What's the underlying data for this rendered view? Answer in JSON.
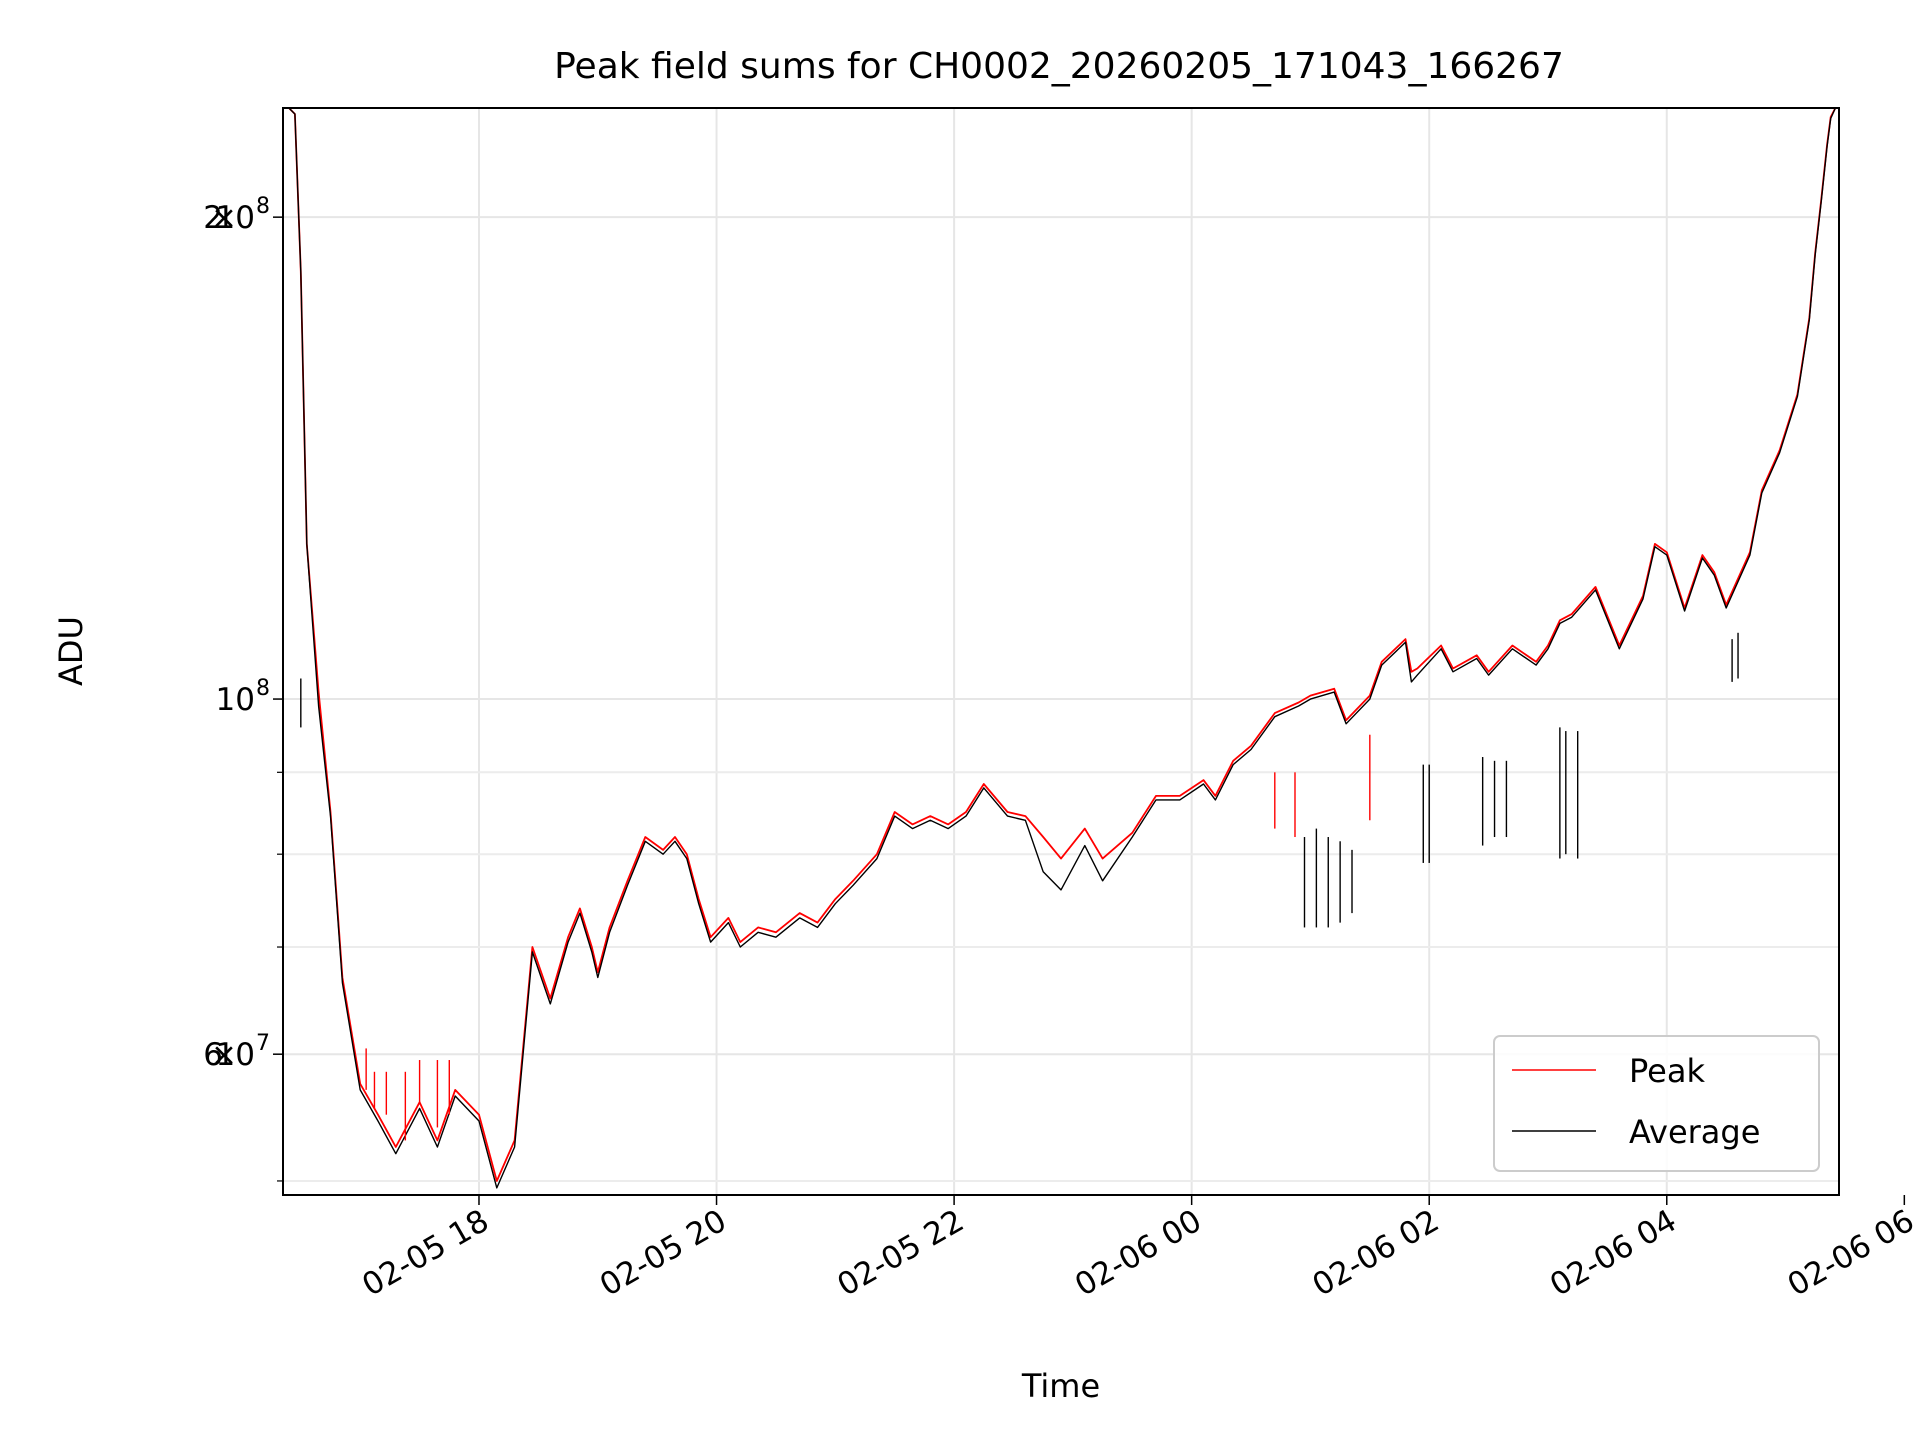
{
  "chart_data": {
    "type": "line",
    "title": "Peak field sums for CH0002_20260205_171043_166267",
    "xlabel": "Time",
    "ylabel": "ADU",
    "y_scale": "log",
    "grid": true,
    "legend_position": "lower-right",
    "xlim_hours": [
      -1.65,
      11.45
    ],
    "ylim": [
      49000000,
      234000000
    ],
    "x_ticks": [
      {
        "hour": 0,
        "label": "02-05 18"
      },
      {
        "hour": 2,
        "label": "02-05 20"
      },
      {
        "hour": 4,
        "label": "02-05 22"
      },
      {
        "hour": 6,
        "label": "02-06 00"
      },
      {
        "hour": 8,
        "label": "02-06 02"
      },
      {
        "hour": 10,
        "label": "02-06 04"
      },
      {
        "hour": 12,
        "label": "02-06 06"
      }
    ],
    "y_major_ticks": [
      {
        "value": 200000000,
        "mantissa": "2",
        "exponent": "8"
      },
      {
        "value": 100000000,
        "mantissa": "",
        "exponent": "8"
      },
      {
        "value": 60000000,
        "mantissa": "6",
        "exponent": "7"
      }
    ],
    "y_minor_ticks": [
      50000000,
      70000000,
      80000000,
      90000000
    ],
    "series": [
      {
        "name": "Peak",
        "color": "#ff0000",
        "x_hours": [
          -1.6,
          -1.55,
          -1.5,
          -1.45,
          -1.35,
          -1.25,
          -1.15,
          -1.0,
          -0.85,
          -0.7,
          -0.5,
          -0.35,
          -0.2,
          0.0,
          0.15,
          0.3,
          0.45,
          0.6,
          0.75,
          0.85,
          0.95,
          1.0,
          1.1,
          1.25,
          1.4,
          1.55,
          1.65,
          1.75,
          1.85,
          1.95,
          2.1,
          2.2,
          2.35,
          2.5,
          2.7,
          2.85,
          3.0,
          3.15,
          3.35,
          3.5,
          3.65,
          3.8,
          3.95,
          4.1,
          4.25,
          4.45,
          4.6,
          4.75,
          4.9,
          5.1,
          5.25,
          5.5,
          5.7,
          5.9,
          6.1,
          6.2,
          6.35,
          6.5,
          6.7,
          6.9,
          7.0,
          7.2,
          7.3,
          7.5,
          7.6,
          7.8,
          7.85,
          7.9,
          8.1,
          8.2,
          8.4,
          8.5,
          8.7,
          8.9,
          9.0,
          9.1,
          9.2,
          9.4,
          9.6,
          9.8,
          9.9,
          10.0,
          10.15,
          10.3,
          10.4,
          10.5,
          10.7,
          10.8,
          10.95,
          11.1,
          11.2,
          11.25,
          11.3,
          11.35,
          11.38,
          11.42
        ],
        "values": [
          234000000,
          232000000,
          185000000,
          125000000,
          101000000,
          85000000,
          67000000,
          57500000,
          55000000,
          52500000,
          56000000,
          53000000,
          57000000,
          55000000,
          50000000,
          53000000,
          70000000,
          65000000,
          71000000,
          74000000,
          70000000,
          67500000,
          72000000,
          77000000,
          82000000,
          80500000,
          82000000,
          80000000,
          75000000,
          71000000,
          73000000,
          70500000,
          72000000,
          71500000,
          73500000,
          72500000,
          75000000,
          77000000,
          80000000,
          85000000,
          83500000,
          84500000,
          83500000,
          85000000,
          88500000,
          85000000,
          84500000,
          82000000,
          79500000,
          83000000,
          79500000,
          82500000,
          87000000,
          87000000,
          89000000,
          87000000,
          91500000,
          93500000,
          98000000,
          99500000,
          100500000,
          101500000,
          97000000,
          100500000,
          105500000,
          109000000,
          104000000,
          104500000,
          108000000,
          104500000,
          106500000,
          104000000,
          108000000,
          105500000,
          108000000,
          112000000,
          113000000,
          117500000,
          108000000,
          116000000,
          125000000,
          123500000,
          114000000,
          123000000,
          120000000,
          114500000,
          123500000,
          135000000,
          143000000,
          155000000,
          173000000,
          190000000,
          205000000,
          222000000,
          231000000,
          234000000
        ]
      },
      {
        "name": "Average",
        "color": "#000000",
        "x_hours": [
          -1.6,
          -1.55,
          -1.5,
          -1.45,
          -1.35,
          -1.25,
          -1.15,
          -1.0,
          -0.85,
          -0.7,
          -0.5,
          -0.35,
          -0.2,
          0.0,
          0.15,
          0.3,
          0.45,
          0.6,
          0.75,
          0.85,
          0.95,
          1.0,
          1.1,
          1.25,
          1.4,
          1.55,
          1.65,
          1.75,
          1.85,
          1.95,
          2.1,
          2.2,
          2.35,
          2.5,
          2.7,
          2.85,
          3.0,
          3.15,
          3.35,
          3.5,
          3.65,
          3.8,
          3.95,
          4.1,
          4.25,
          4.45,
          4.6,
          4.75,
          4.9,
          5.1,
          5.25,
          5.5,
          5.7,
          5.9,
          6.1,
          6.2,
          6.35,
          6.5,
          6.7,
          6.9,
          7.0,
          7.2,
          7.3,
          7.5,
          7.6,
          7.8,
          7.85,
          7.9,
          8.1,
          8.2,
          8.4,
          8.5,
          8.7,
          8.9,
          9.0,
          9.1,
          9.2,
          9.4,
          9.6,
          9.8,
          9.9,
          10.0,
          10.15,
          10.3,
          10.4,
          10.5,
          10.7,
          10.8,
          10.95,
          11.1,
          11.2,
          11.25,
          11.3,
          11.35,
          11.38,
          11.42
        ],
        "values": [
          234000000,
          232000000,
          185000000,
          125000000,
          99000000,
          84500000,
          66500000,
          57000000,
          54500000,
          52000000,
          55500000,
          52500000,
          56500000,
          54500000,
          49500000,
          52500000,
          69500000,
          64500000,
          70500000,
          73500000,
          69500000,
          67000000,
          71500000,
          76500000,
          81500000,
          80000000,
          81500000,
          79500000,
          74500000,
          70500000,
          72500000,
          70000000,
          71500000,
          71000000,
          73000000,
          72000000,
          74500000,
          76500000,
          79500000,
          84500000,
          83000000,
          84000000,
          83000000,
          84500000,
          88000000,
          84500000,
          84000000,
          78000000,
          76000000,
          81000000,
          77000000,
          82000000,
          86500000,
          86500000,
          88500000,
          86500000,
          91000000,
          93000000,
          97500000,
          99000000,
          100000000,
          101000000,
          96500000,
          100000000,
          105000000,
          108500000,
          102500000,
          103500000,
          107500000,
          104000000,
          106000000,
          103500000,
          107500000,
          105000000,
          107500000,
          111500000,
          112500000,
          117000000,
          107500000,
          115500000,
          124500000,
          123000000,
          113500000,
          122500000,
          119500000,
          114000000,
          123000000,
          134500000,
          142500000,
          154500000,
          172500000,
          189500000,
          204500000,
          221500000,
          230500000,
          234000000
        ]
      }
    ],
    "spikes": [
      {
        "series": "Peak",
        "x_hour": -0.95,
        "values": [
          57000000,
          60500000
        ]
      },
      {
        "series": "Peak",
        "x_hour": -0.88,
        "values": [
          55500000,
          58500000
        ]
      },
      {
        "series": "Peak",
        "x_hour": -0.78,
        "values": [
          55000000,
          58500000
        ]
      },
      {
        "series": "Peak",
        "x_hour": -0.62,
        "values": [
          53000000,
          58500000
        ]
      },
      {
        "series": "Peak",
        "x_hour": -0.5,
        "values": [
          56000000,
          59500000
        ]
      },
      {
        "series": "Peak",
        "x_hour": -0.35,
        "values": [
          54000000,
          59500000
        ]
      },
      {
        "series": "Peak",
        "x_hour": -0.25,
        "values": [
          55000000,
          59500000
        ]
      },
      {
        "series": "Peak",
        "x_hour": 6.7,
        "values": [
          83000000,
          90000000
        ]
      },
      {
        "series": "Peak",
        "x_hour": 6.87,
        "values": [
          82000000,
          90000000
        ]
      },
      {
        "series": "Peak",
        "x_hour": 7.5,
        "values": [
          84000000,
          95000000
        ]
      },
      {
        "series": "Average",
        "x_hour": 6.95,
        "values": [
          72000000,
          82000000
        ]
      },
      {
        "series": "Average",
        "x_hour": 7.05,
        "values": [
          72000000,
          83000000
        ]
      },
      {
        "series": "Average",
        "x_hour": 7.15,
        "values": [
          72000000,
          82000000
        ]
      },
      {
        "series": "Average",
        "x_hour": 7.25,
        "values": [
          72500000,
          81500000
        ]
      },
      {
        "series": "Average",
        "x_hour": 7.35,
        "values": [
          73500000,
          80500000
        ]
      },
      {
        "series": "Average",
        "x_hour": 7.95,
        "values": [
          79000000,
          91000000
        ]
      },
      {
        "series": "Average",
        "x_hour": 8.0,
        "values": [
          79000000,
          91000000
        ]
      },
      {
        "series": "Average",
        "x_hour": 8.45,
        "values": [
          81000000,
          92000000
        ]
      },
      {
        "series": "Average",
        "x_hour": 8.55,
        "values": [
          82000000,
          91500000
        ]
      },
      {
        "series": "Average",
        "x_hour": 8.65,
        "values": [
          82000000,
          91500000
        ]
      },
      {
        "series": "Average",
        "x_hour": 9.1,
        "values": [
          79500000,
          96000000
        ]
      },
      {
        "series": "Average",
        "x_hour": 9.15,
        "values": [
          80000000,
          95500000
        ]
      },
      {
        "series": "Average",
        "x_hour": 9.25,
        "values": [
          79500000,
          95500000
        ]
      },
      {
        "series": "Average",
        "x_hour": 10.55,
        "values": [
          102500000,
          109000000
        ]
      },
      {
        "series": "Average",
        "x_hour": 10.6,
        "values": [
          103000000,
          110000000
        ]
      },
      {
        "series": "Average",
        "x_hour": -1.5,
        "values": [
          96000000,
          103000000
        ]
      }
    ]
  }
}
